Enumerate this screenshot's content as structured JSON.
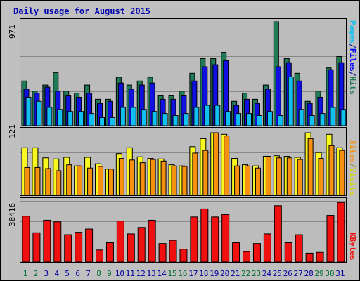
{
  "title": "Daily usage for August 2015",
  "colors": {
    "hits": "#1f7a55",
    "files": "#1010e0",
    "pages": "#10c0f0",
    "visits": "#f8f820",
    "sites": "#f89010",
    "kbytes": "#f01010",
    "day_green": "#007030",
    "day_blue": "#0000a0"
  },
  "legends": {
    "top": [
      "Pages",
      "/",
      "Files",
      "/",
      "Hits"
    ],
    "mid": [
      "Sites",
      "/",
      "Visits"
    ],
    "bot": [
      "KBytes"
    ]
  },
  "chart_data": {
    "type": "bar",
    "title": "Daily usage for August 2015",
    "categories": [
      "1",
      "2",
      "3",
      "4",
      "5",
      "6",
      "7",
      "8",
      "9",
      "10",
      "11",
      "12",
      "13",
      "14",
      "15",
      "16",
      "17",
      "18",
      "19",
      "20",
      "21",
      "22",
      "23",
      "24",
      "25",
      "26",
      "27",
      "28",
      "29",
      "30",
      "31"
    ],
    "weekend_days": [
      "1",
      "2",
      "8",
      "9",
      "15",
      "16",
      "22",
      "23",
      "29",
      "30"
    ],
    "panels": [
      {
        "id": "top",
        "ymax_label": "971",
        "ylim": [
          0,
          971
        ],
        "series": [
          {
            "name": "Hits",
            "values": [
              418,
              323,
              380,
              497,
              323,
              304,
              380,
              247,
              247,
              453,
              380,
              418,
              453,
              285,
              285,
              323,
              490,
              627,
              627,
              685,
              228,
              304,
              247,
              380,
              971,
              627,
              490,
              228,
              323,
              540,
              646
            ]
          },
          {
            "name": "Files",
            "values": [
              342,
              304,
              360,
              323,
              285,
              266,
              304,
              209,
              228,
              399,
              342,
              380,
              399,
              247,
              247,
              285,
              418,
              551,
              570,
              608,
              190,
              247,
              209,
              342,
              551,
              589,
              418,
              209,
              266,
              523,
              589
            ]
          },
          {
            "name": "Pages",
            "values": [
              266,
              228,
              171,
              152,
              133,
              133,
              114,
              76,
              76,
              171,
              171,
              152,
              133,
              114,
              95,
              114,
              171,
              190,
              190,
              133,
              114,
              114,
              95,
              133,
              95,
              456,
              152,
              95,
              114,
              171,
              152
            ]
          }
        ]
      },
      {
        "id": "mid",
        "ymax_label": "121",
        "ylim": [
          0,
          121
        ],
        "series": [
          {
            "name": "Visits",
            "values": [
              89,
              89,
              70,
              68,
              71,
              55,
              71,
              59,
              49,
              78,
              89,
              72,
              69,
              68,
              57,
              55,
              91,
              106,
              117,
              114,
              69,
              57,
              55,
              73,
              74,
              73,
              71,
              117,
              80,
              114,
              89
            ]
          },
          {
            "name": "Sites",
            "values": [
              52,
              52,
              50,
              46,
              57,
              55,
              51,
              54,
              49,
              69,
              66,
              61,
              67,
              64,
              55,
              54,
              79,
              84,
              117,
              111,
              55,
              55,
              51,
              73,
              70,
              70,
              67,
              106,
              69,
              93,
              84
            ]
          }
        ]
      },
      {
        "id": "bot",
        "ymax_label": "38416",
        "ylim": [
          0,
          38416
        ],
        "series": [
          {
            "name": "KBytes",
            "values": [
              28500,
              18200,
              26000,
              25000,
              17000,
              18500,
              20500,
              7500,
              12000,
              25500,
              17500,
              21500,
              26000,
              11500,
              13500,
              8000,
              28000,
              33000,
              28000,
              29500,
              12000,
              6500,
              11500,
              17500,
              35000,
              12000,
              17000,
              5500,
              6000,
              29000,
              37000
            ]
          }
        ]
      }
    ]
  }
}
